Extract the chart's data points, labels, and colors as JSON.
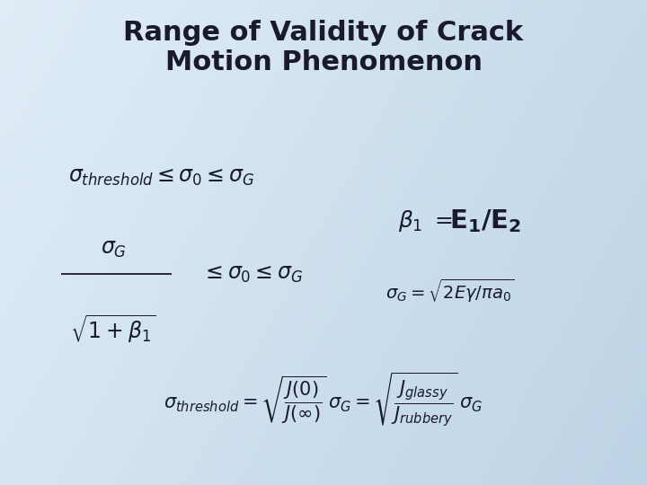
{
  "title_line1": "Range of Validity of Crack",
  "title_line2": "Motion Phenomenon",
  "title_fontsize": 22,
  "title_color": "#1a1a2e",
  "formula_color": "#1a1a2e",
  "formula_fontsize": 17,
  "beta_fontsize": 20
}
